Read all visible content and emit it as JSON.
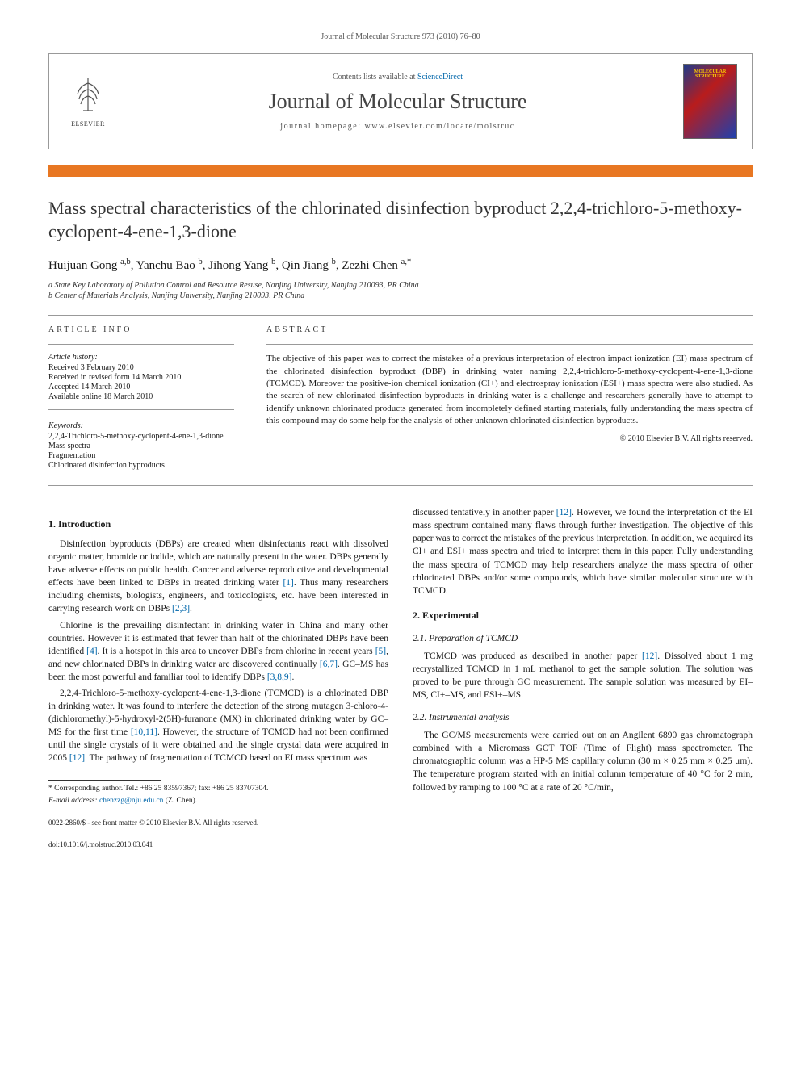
{
  "journal_ref": "Journal of Molecular Structure 973 (2010) 76–80",
  "header": {
    "contents_line_pre": "Contents lists available at ",
    "sd": "ScienceDirect",
    "journal_name": "Journal of Molecular Structure",
    "homepage": "journal homepage: www.elsevier.com/locate/molstruc",
    "publisher": "ELSEVIER",
    "cover_title": "MOLECULAR STRUCTURE"
  },
  "colors": {
    "orange_rule": "#e87722",
    "link": "#0066aa",
    "text": "#1a1a1a"
  },
  "title": "Mass spectral characteristics of the chlorinated disinfection byproduct 2,2,4-trichloro-5-methoxy-cyclopent-4-ene-1,3-dione",
  "authors_html": "Huijuan Gong <sup>a,b</sup>, Yanchu Bao <sup>b</sup>, Jihong Yang <sup>b</sup>, Qin Jiang <sup>b</sup>, Zezhi Chen <sup>a,*</sup>",
  "affiliations": [
    "a State Key Laboratory of Pollution Control and Resource Resuse, Nanjing University, Nanjing 210093, PR China",
    "b Center of Materials Analysis, Nanjing University, Nanjing 210093, PR China"
  ],
  "info_head": "ARTICLE INFO",
  "abs_head": "ABSTRACT",
  "history": {
    "label": "Article history:",
    "items": [
      "Received 3 February 2010",
      "Received in revised form 14 March 2010",
      "Accepted 14 March 2010",
      "Available online 18 March 2010"
    ]
  },
  "keywords": {
    "label": "Keywords:",
    "items": [
      "2,2,4-Trichloro-5-methoxy-cyclopent-4-ene-1,3-dione",
      "Mass spectra",
      "Fragmentation",
      "Chlorinated disinfection byproducts"
    ]
  },
  "abstract": "The objective of this paper was to correct the mistakes of a previous interpretation of electron impact ionization (EI) mass spectrum of the chlorinated disinfection byproduct (DBP) in drinking water naming 2,2,4-trichloro-5-methoxy-cyclopent-4-ene-1,3-dione (TCMCD). Moreover the positive-ion chemical ionization (CI+) and electrospray ionization (ESI+) mass spectra were also studied. As the search of new chlorinated disinfection byproducts in drinking water is a challenge and researchers generally have to attempt to identify unknown chlorinated products generated from incompletely defined starting materials, fully understanding the mass spectra of this compound may do some help for the analysis of other unknown chlorinated disinfection byproducts.",
  "copyright_line": "© 2010 Elsevier B.V. All rights reserved.",
  "sections": {
    "intro_head": "1. Introduction",
    "intro_p1": "Disinfection byproducts (DBPs) are created when disinfectants react with dissolved organic matter, bromide or iodide, which are naturally present in the water. DBPs generally have adverse effects on public health. Cancer and adverse reproductive and developmental effects have been linked to DBPs in treated drinking water [1]. Thus many researchers including chemists, biologists, engineers, and toxicologists, etc. have been interested in carrying research work on DBPs [2,3].",
    "intro_p2": "Chlorine is the prevailing disinfectant in drinking water in China and many other countries. However it is estimated that fewer than half of the chlorinated DBPs have been identified [4]. It is a hotspot in this area to uncover DBPs from chlorine in recent years [5], and new chlorinated DBPs in drinking water are discovered continually [6,7]. GC–MS has been the most powerful and familiar tool to identify DBPs [3,8,9].",
    "intro_p3": "2,2,4-Trichloro-5-methoxy-cyclopent-4-ene-1,3-dione (TCMCD) is a chlorinated DBP in drinking water. It was found to interfere the detection of the strong mutagen 3-chloro-4-(dichloromethyl)-5-hydroxyl-2(5H)-furanone (MX) in chlorinated drinking water by GC–MS for the first time [10,11]. However, the structure of TCMCD had not been confirmed until the single crystals of it were obtained and the single crystal data were acquired in 2005 [12]. The pathway of fragmentation of TCMCD based on EI mass spectrum was",
    "intro_p4": "discussed tentatively in another paper [12]. However, we found the interpretation of the EI mass spectrum contained many flaws through further investigation. The objective of this paper was to correct the mistakes of the previous interpretation. In addition, we acquired its CI+ and ESI+ mass spectra and tried to interpret them in this paper. Fully understanding the mass spectra of TCMCD may help researchers analyze the mass spectra of other chlorinated DBPs and/or some compounds, which have similar molecular structure with TCMCD.",
    "exp_head": "2. Experimental",
    "prep_head": "2.1. Preparation of TCMCD",
    "prep_p": "TCMCD was produced as described in another paper [12]. Dissolved about 1 mg recrystallized TCMCD in 1 mL methanol to get the sample solution. The solution was proved to be pure through GC measurement. The sample solution was measured by EI–MS, CI+–MS, and ESI+–MS.",
    "instr_head": "2.2. Instrumental analysis",
    "instr_p": "The GC/MS measurements were carried out on an Angilent 6890 gas chromatograph combined with a Micromass GCT TOF (Time of Flight) mass spectrometer. The chromatographic column was a HP-5 MS capillary column (30 m × 0.25 mm × 0.25 μm). The temperature program started with an initial column temperature of 40 °C for 2 min, followed by ramping to 100 °C at a rate of 20 °C/min,"
  },
  "corresponding": {
    "line1": "* Corresponding author. Tel.: +86 25 83597367; fax: +86 25 83707304.",
    "line2": "E-mail address: chenzzg@nju.edu.cn (Z. Chen)."
  },
  "footer": {
    "front_matter": "0022-2860/$ - see front matter © 2010 Elsevier B.V. All rights reserved.",
    "doi": "doi:10.1016/j.molstruc.2010.03.041"
  }
}
